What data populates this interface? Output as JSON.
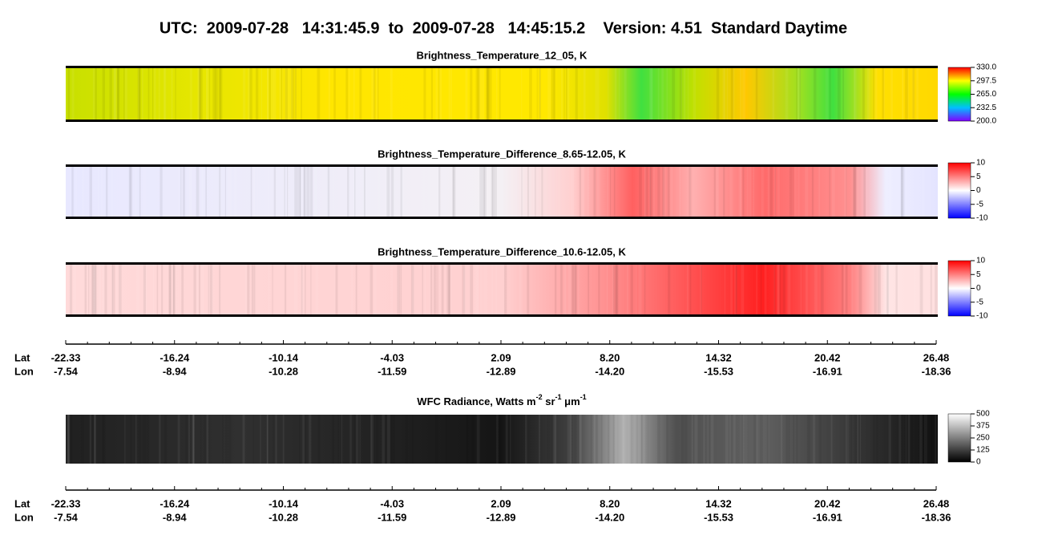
{
  "header": {
    "title": "UTC:  2009-07-28   14:31:45.9  to  2009-07-28   14:45:15.2    Version: 4.51  Standard Daytime"
  },
  "panels": [
    {
      "title": "Brightness_Temperature_12_05, K",
      "colorbar_ticks": [
        "330.0",
        "297.5",
        "265.0",
        "232.5",
        "200.0"
      ]
    },
    {
      "title": "Brightness_Temperature_Difference_8.65-12.05, K",
      "colorbar_ticks": [
        "10",
        "5",
        "0",
        "-5",
        "-10"
      ]
    },
    {
      "title": "Brightness_Temperature_Difference_10.6-12.05, K",
      "colorbar_ticks": [
        "10",
        "5",
        "0",
        "-5",
        "-10"
      ]
    }
  ],
  "wfc": {
    "title_parts": [
      "WFC Radiance, Watts m",
      "-2",
      " sr",
      "-1",
      " μm",
      "-1"
    ],
    "colorbar_ticks": [
      "500",
      "375",
      "250",
      "125",
      "0"
    ]
  },
  "axis": {
    "lat_label": "Lat",
    "lon_label": "Lon",
    "lat": [
      "-22.33",
      "-16.24",
      "-10.14",
      "-4.03",
      "2.09",
      "8.20",
      "14.32",
      "20.42",
      "26.48"
    ],
    "lon": [
      "-7.54",
      "-8.94",
      "-10.28",
      "-11.59",
      "-12.89",
      "-14.20",
      "-15.53",
      "-16.91",
      "-18.36"
    ]
  }
}
